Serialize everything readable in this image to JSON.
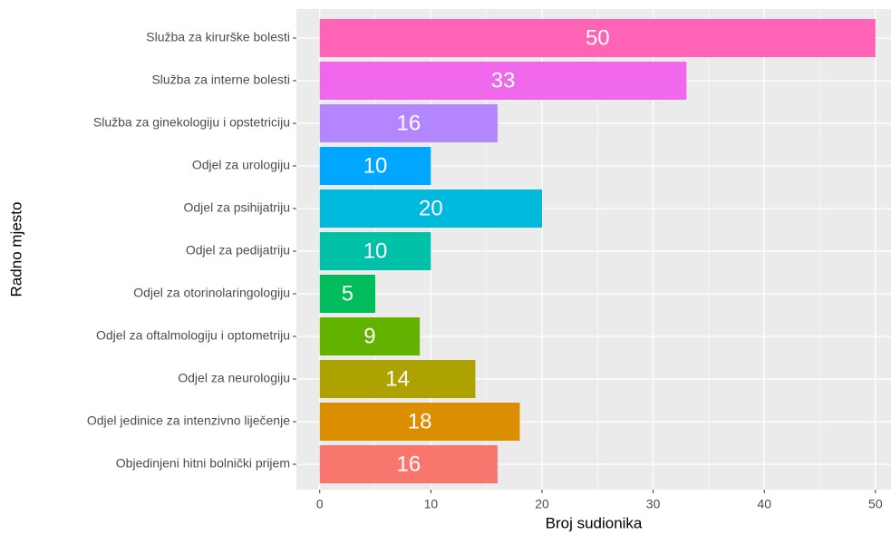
{
  "chart_data": {
    "type": "barh",
    "x_label": "Broj sudionika",
    "y_label": "Radno mjesto",
    "categories": [
      "Služba za kirurške bolesti",
      "Služba za interne bolesti",
      "Služba za ginekologiju i opstetriciju",
      "Odjel za urologiju",
      "Odjel za psihijatriju",
      "Odjel za pedijatriju",
      "Odjel za otorinolaringologiju",
      "Odjel za oftalmologiju i optometriju",
      "Odjel za neurologiju",
      "Odjel jedinice za intenzivno liječenje",
      "Objedinjeni hitni bolnički prijem"
    ],
    "values": [
      50,
      33,
      16,
      10,
      20,
      10,
      5,
      9,
      14,
      18,
      16
    ],
    "colors": [
      "#FF63B6",
      "#EF67EB",
      "#B385FF",
      "#00A6FF",
      "#00BADE",
      "#00C1A7",
      "#00BD5C",
      "#64B200",
      "#AEA200",
      "#DB8E00",
      "#F8766D"
    ],
    "xlim": [
      -2.1,
      51.4
    ],
    "xticks": [
      0,
      10,
      20,
      30,
      40,
      50
    ],
    "grid": true
  }
}
